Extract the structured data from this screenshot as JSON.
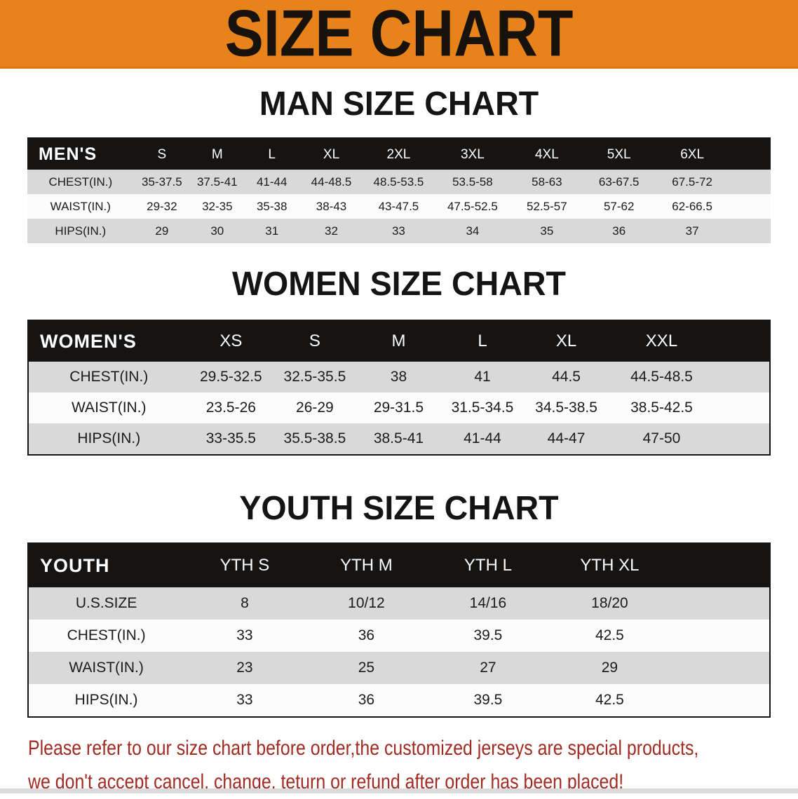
{
  "banner": {
    "title": "SIZE CHART"
  },
  "colors": {
    "banner_bg": "#E8821B",
    "table_header_bg": "#161413",
    "stripe_gray": "#D9D9D9",
    "stripe_white": "#FCFCFC",
    "disclaimer_red": "#A12B22"
  },
  "sections": {
    "men": {
      "heading": "MAN SIZE CHART",
      "table": {
        "header": [
          "MEN'S",
          "S",
          "M",
          "L",
          "XL",
          "2XL",
          "3XL",
          "4XL",
          "5XL",
          "6XL"
        ],
        "rows": [
          [
            "CHEST(IN.)",
            "35-37.5",
            "37.5-41",
            "41-44",
            "44-48.5",
            "48.5-53.5",
            "53.5-58",
            "58-63",
            "63-67.5",
            "67.5-72"
          ],
          [
            "WAIST(IN.)",
            "29-32",
            "32-35",
            "35-38",
            "38-43",
            "43-47.5",
            "47.5-52.5",
            "52.5-57",
            "57-62",
            "62-66.5"
          ],
          [
            "HIPS(IN.)",
            "29",
            "30",
            "31",
            "32",
            "33",
            "34",
            "35",
            "36",
            "37"
          ]
        ],
        "stripes": [
          "gray",
          "white",
          "gray"
        ]
      }
    },
    "women": {
      "heading": "WOMEN SIZE CHART",
      "table": {
        "header": [
          "WOMEN'S",
          "XS",
          "S",
          "M",
          "L",
          "XL",
          "XXL"
        ],
        "rows": [
          [
            "CHEST(IN.)",
            "29.5-32.5",
            "32.5-35.5",
            "38",
            "41",
            "44.5",
            "44.5-48.5"
          ],
          [
            "WAIST(IN.)",
            "23.5-26",
            "26-29",
            "29-31.5",
            "31.5-34.5",
            "34.5-38.5",
            "38.5-42.5"
          ],
          [
            "HIPS(IN.)",
            "33-35.5",
            "35.5-38.5",
            "38.5-41",
            "41-44",
            "44-47",
            "47-50"
          ]
        ],
        "stripes": [
          "gray",
          "white",
          "gray"
        ]
      }
    },
    "youth": {
      "heading": "YOUTH SIZE CHART",
      "table": {
        "header": [
          "YOUTH",
          "YTH S",
          "YTH M",
          "YTH L",
          "YTH XL"
        ],
        "rows": [
          [
            "U.S.SIZE",
            "8",
            "10/12",
            "14/16",
            "18/20"
          ],
          [
            "CHEST(IN.)",
            "33",
            "36",
            "39.5",
            "42.5"
          ],
          [
            "WAIST(IN.)",
            "23",
            "25",
            "27",
            "29"
          ],
          [
            "HIPS(IN.)",
            "33",
            "36",
            "39.5",
            "42.5"
          ]
        ],
        "stripes": [
          "gray",
          "white",
          "gray",
          "white"
        ]
      }
    }
  },
  "disclaimer": {
    "line1": "Please refer to our size chart before order,the customized jerseys are special products,",
    "line2": "we don't accept cancel, change, teturn or refund after order has been placed!"
  }
}
